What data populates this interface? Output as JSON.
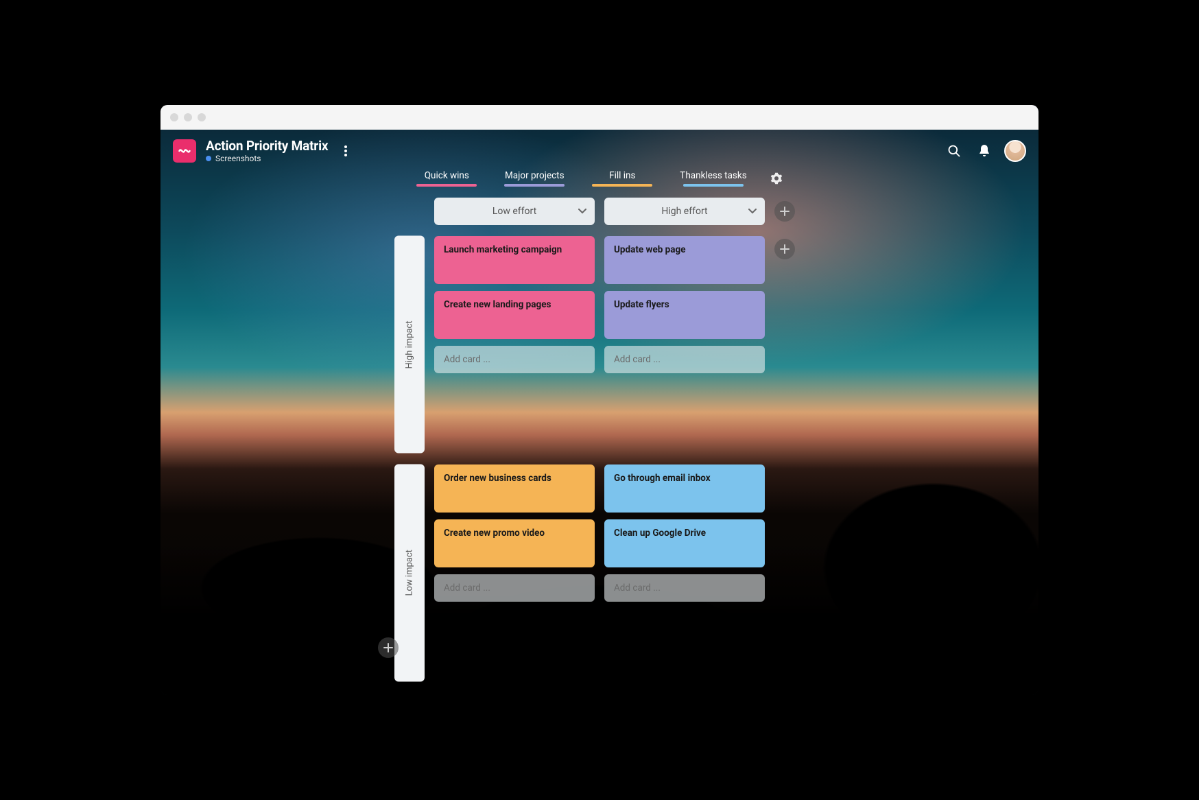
{
  "colors": {
    "brand": "#ea2e6c",
    "sub_dot": "#4a8ff0",
    "pink": "#ed6292",
    "purple": "#9b9bd8",
    "orange": "#f5b455",
    "blue": "#7cc3ed",
    "add_card_bg": "rgba(232,236,239,0.6)",
    "col_header_bg": "#e8ecef",
    "row_label_bg": "#f2f4f6",
    "text_dark": "#1a1a1a"
  },
  "header": {
    "title": "Action Priority Matrix",
    "subtitle": "Screenshots"
  },
  "legend": [
    {
      "label": "Quick wins",
      "color": "#ed6292"
    },
    {
      "label": "Major projects",
      "color": "#9b9bd8"
    },
    {
      "label": "Fill ins",
      "color": "#f5b455"
    },
    {
      "label": "Thankless tasks",
      "color": "#7cc3ed"
    }
  ],
  "columns": [
    {
      "label": "Low effort"
    },
    {
      "label": "High effort"
    }
  ],
  "rows": [
    {
      "label": "High impact"
    },
    {
      "label": "Low impact"
    }
  ],
  "add_card_placeholder": "Add card ...",
  "cells": {
    "r0c0": {
      "color": "#ed6292",
      "cards": [
        "Launch marketing campaign",
        "Create new landing pages"
      ]
    },
    "r0c1": {
      "color": "#9b9bd8",
      "cards": [
        "Update web page",
        "Update flyers"
      ]
    },
    "r1c0": {
      "color": "#f5b455",
      "cards": [
        "Order new business cards",
        "Create new promo video"
      ]
    },
    "r1c1": {
      "color": "#7cc3ed",
      "cards": [
        "Go through email inbox",
        "Clean up Google Drive"
      ]
    }
  }
}
